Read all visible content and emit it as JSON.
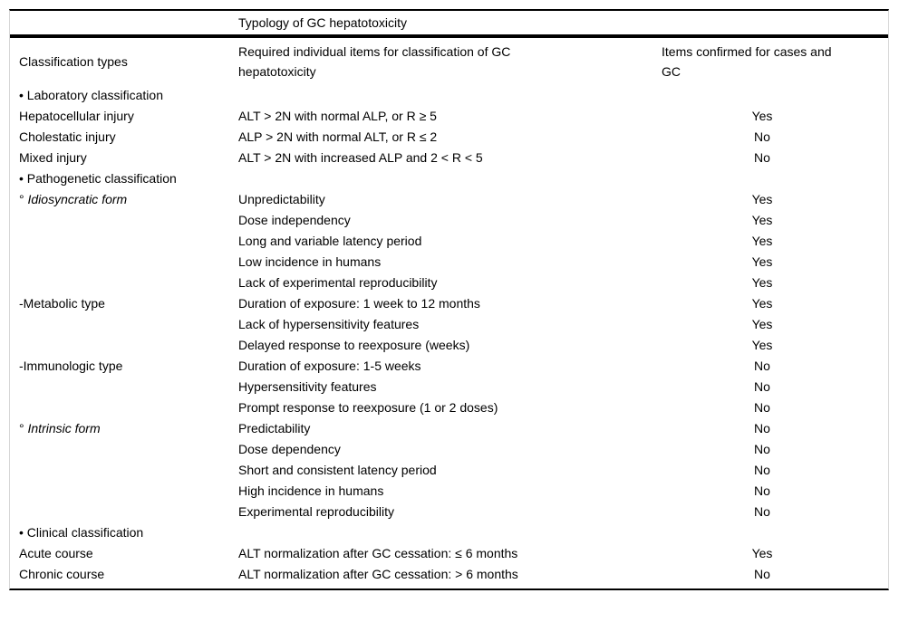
{
  "colors": {
    "text": "#000000",
    "rule": "#000000",
    "figure_border": "#d6d6d6",
    "background": "#ffffff"
  },
  "table": {
    "title": "Typology of GC hepatotoxicity",
    "columns": {
      "c1": "Classification types",
      "c2": "Required individual items for classification of GC hepatotoxicity",
      "c3": "Items confirmed for cases and GC"
    },
    "rows": [
      {
        "c1_prefix": "• ",
        "c1": "Laboratory classification",
        "c1_italic": false,
        "c2": "",
        "c3": ""
      },
      {
        "c1_prefix": "",
        "c1": "Hepatocellular injury",
        "c1_italic": false,
        "c2": "ALT > 2N with normal ALP, or R ≥ 5",
        "c3": "Yes"
      },
      {
        "c1_prefix": "",
        "c1": "Cholestatic injury",
        "c1_italic": false,
        "c2": "ALP > 2N with normal ALT, or R ≤ 2",
        "c3": "No"
      },
      {
        "c1_prefix": "",
        "c1": "Mixed injury",
        "c1_italic": false,
        "c2": "ALT > 2N with increased ALP and 2 < R < 5",
        "c3": "No"
      },
      {
        "c1_prefix": "• ",
        "c1": "Pathogenetic classification",
        "c1_italic": false,
        "c2": "",
        "c3": ""
      },
      {
        "c1_prefix": "° ",
        "c1": "Idiosyncratic form",
        "c1_italic": true,
        "c2": "Unpredictability",
        "c3": "Yes"
      },
      {
        "c1_prefix": "",
        "c1": "",
        "c1_italic": false,
        "c2": "Dose independency",
        "c3": "Yes"
      },
      {
        "c1_prefix": "",
        "c1": "",
        "c1_italic": false,
        "c2": "Long and variable latency period",
        "c3": "Yes"
      },
      {
        "c1_prefix": "",
        "c1": "",
        "c1_italic": false,
        "c2": "Low incidence in humans",
        "c3": "Yes"
      },
      {
        "c1_prefix": "",
        "c1": "",
        "c1_italic": false,
        "c2": "Lack of experimental reproducibility",
        "c3": "Yes"
      },
      {
        "c1_prefix": "-",
        "c1": "Metabolic type",
        "c1_italic": false,
        "c2": "Duration of exposure: 1 week to 12 months",
        "c3": "Yes"
      },
      {
        "c1_prefix": "",
        "c1": "",
        "c1_italic": false,
        "c2": "Lack of hypersensitivity features",
        "c3": "Yes"
      },
      {
        "c1_prefix": "",
        "c1": "",
        "c1_italic": false,
        "c2": "Delayed response to reexposure (weeks)",
        "c3": "Yes"
      },
      {
        "c1_prefix": "-",
        "c1": "Immunologic type",
        "c1_italic": false,
        "c2": "Duration of exposure: 1-5 weeks",
        "c3": "No"
      },
      {
        "c1_prefix": "",
        "c1": "",
        "c1_italic": false,
        "c2": "Hypersensitivity features",
        "c3": "No"
      },
      {
        "c1_prefix": "",
        "c1": "",
        "c1_italic": false,
        "c2": "Prompt response to reexposure (1 or 2 doses)",
        "c3": "No"
      },
      {
        "c1_prefix": "° ",
        "c1": "Intrinsic form",
        "c1_italic": true,
        "c2": "Predictability",
        "c3": "No"
      },
      {
        "c1_prefix": "",
        "c1": "",
        "c1_italic": false,
        "c2": "Dose dependency",
        "c3": "No"
      },
      {
        "c1_prefix": "",
        "c1": "",
        "c1_italic": false,
        "c2": "Short and consistent latency period",
        "c3": "No"
      },
      {
        "c1_prefix": "",
        "c1": "",
        "c1_italic": false,
        "c2": "High incidence in humans",
        "c3": "No"
      },
      {
        "c1_prefix": "",
        "c1": "",
        "c1_italic": false,
        "c2": "Experimental reproducibility",
        "c3": "No"
      },
      {
        "c1_prefix": "• ",
        "c1": "Clinical classification",
        "c1_italic": false,
        "c2": "",
        "c3": ""
      },
      {
        "c1_prefix": "",
        "c1": "Acute course",
        "c1_italic": false,
        "c2": "ALT normalization after GC cessation: ≤ 6 months",
        "c3": "Yes"
      },
      {
        "c1_prefix": "",
        "c1": "Chronic course",
        "c1_italic": false,
        "c2": "ALT normalization after GC cessation: > 6 months",
        "c3": "No"
      }
    ]
  }
}
